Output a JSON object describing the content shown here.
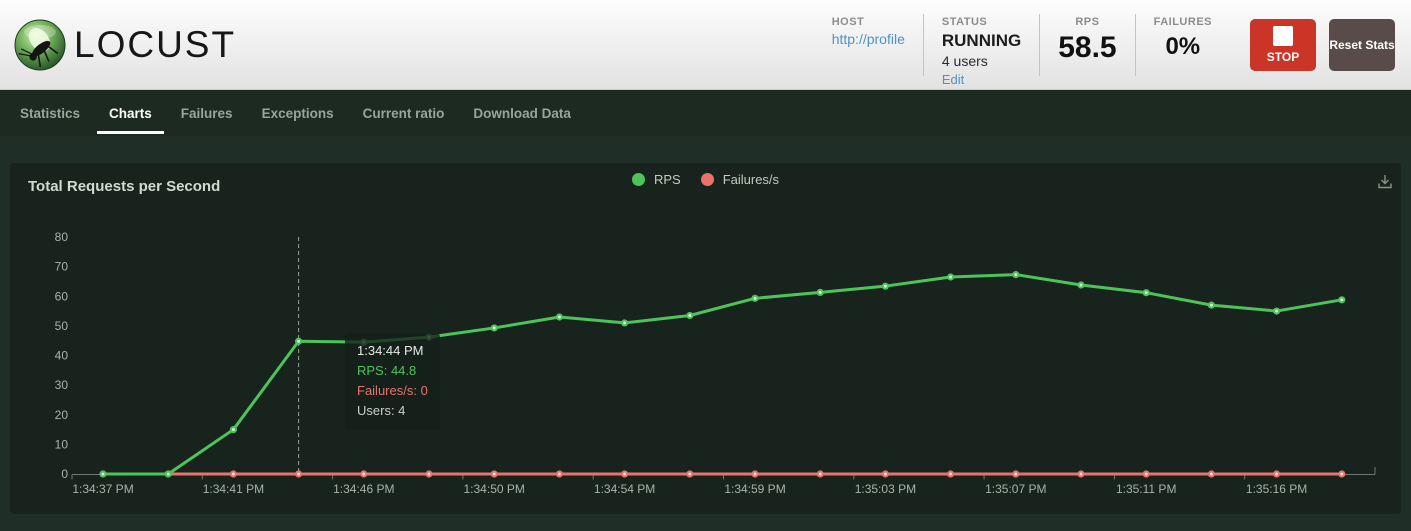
{
  "header": {
    "logo_text": "LOCUST",
    "host": {
      "label": "HOST",
      "value": "http://profile"
    },
    "status": {
      "label": "STATUS",
      "value": "RUNNING",
      "users": "4 users",
      "edit_link": "Edit"
    },
    "rps": {
      "label": "RPS",
      "value": "58.5"
    },
    "failures": {
      "label": "FAILURES",
      "value": "0%"
    },
    "stop_button_label": "STOP",
    "reset_button_label": "Reset Stats"
  },
  "nav": {
    "tabs": [
      {
        "label": "Statistics",
        "active": false
      },
      {
        "label": "Charts",
        "active": true
      },
      {
        "label": "Failures",
        "active": false
      },
      {
        "label": "Exceptions",
        "active": false
      },
      {
        "label": "Current ratio",
        "active": false
      },
      {
        "label": "Download Data",
        "active": false
      }
    ]
  },
  "chart": {
    "title": "Total Requests per Second",
    "legend": [
      {
        "label": "RPS",
        "color": "#4cc45a"
      },
      {
        "label": "Failures/s",
        "color": "#e9736b"
      }
    ],
    "tooltip": {
      "time": "1:34:44 PM",
      "rps_line": "RPS: 44.8",
      "failures_line": "Failures/s: 0",
      "users_line": "Users: 4"
    }
  },
  "chart_data": {
    "type": "line",
    "title": "Total Requests per Second",
    "x": [
      "1:34:37 PM",
      "1:34:39 PM",
      "1:34:41 PM",
      "1:34:44 PM",
      "1:34:46 PM",
      "1:34:48 PM",
      "1:34:50 PM",
      "1:34:52 PM",
      "1:34:54 PM",
      "1:34:57 PM",
      "1:34:59 PM",
      "1:35:01 PM",
      "1:35:03 PM",
      "1:35:05 PM",
      "1:35:07 PM",
      "1:35:09 PM",
      "1:35:11 PM",
      "1:35:14 PM",
      "1:35:16 PM",
      "1:35:18 PM"
    ],
    "x_tick_labels": [
      "1:34:37 PM",
      "1:34:41 PM",
      "1:34:46 PM",
      "1:34:50 PM",
      "1:34:54 PM",
      "1:34:59 PM",
      "1:35:03 PM",
      "1:35:07 PM",
      "1:35:11 PM",
      "1:35:16 PM"
    ],
    "label_every": 2,
    "series": [
      {
        "name": "RPS",
        "color": "#4cc45a",
        "values": [
          0,
          0,
          15,
          44.8,
          44.5,
          46.2,
          49.3,
          53,
          51,
          53.5,
          59.3,
          61.3,
          63.4,
          66.5,
          67.3,
          63.8,
          61.2,
          57,
          55,
          58.8
        ]
      },
      {
        "name": "Failures/s",
        "color": "#e9736b",
        "values": [
          0,
          0,
          0,
          0,
          0,
          0,
          0,
          0,
          0,
          0,
          0,
          0,
          0,
          0,
          0,
          0,
          0,
          0,
          0,
          0
        ]
      }
    ],
    "ylim": [
      0,
      80
    ],
    "y_ticks": [
      0,
      10,
      20,
      30,
      40,
      50,
      60,
      70,
      80
    ],
    "grid": false,
    "legend_position": "top-center",
    "highlighted_point": {
      "index": 3,
      "time": "1:34:44 PM",
      "rps": 44.8,
      "failures": 0,
      "users": 4
    }
  },
  "colors": {
    "rps_green": "#4cc45a",
    "failures_red": "#e9736b",
    "axis_gray": "#6e7a70",
    "panel_bg": "#18231d",
    "page_bg": "#202e28",
    "nav_bg": "#1c2a22",
    "stop_red": "#ca3527",
    "reset_gray": "#584b49",
    "link_blue": "#4d93c9"
  }
}
